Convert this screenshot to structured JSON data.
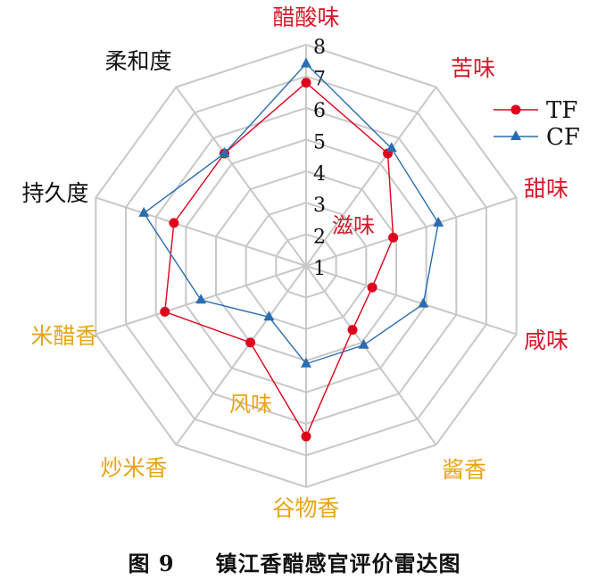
{
  "chart_data": {
    "type": "radar",
    "title": "图 9　镇江香醋感官评价雷达图",
    "figure_number": "图 9",
    "caption": "镇江香醋感官评价雷达图",
    "axes": [
      {
        "label": "醋酸味",
        "color": "#d7182a"
      },
      {
        "label": "苦味",
        "color": "#d7182a"
      },
      {
        "label": "甜味",
        "color": "#d7182a"
      },
      {
        "label": "咸味",
        "color": "#d7182a"
      },
      {
        "label": "酱香",
        "color": "#e8a317"
      },
      {
        "label": "谷物香",
        "color": "#e8a317"
      },
      {
        "label": "炒米香",
        "color": "#e8a317"
      },
      {
        "label": "米醋香",
        "color": "#e8a317"
      },
      {
        "label": "持久度",
        "color": "#111111"
      },
      {
        "label": "柔和度",
        "color": "#111111"
      }
    ],
    "categories": [
      "醋酸味",
      "苦味",
      "甜味",
      "咸味",
      "酱香",
      "谷物香",
      "炒米香",
      "米醋香",
      "持久度",
      "柔和度"
    ],
    "group_labels": [
      {
        "label": "滋味",
        "color": "#d7182a"
      },
      {
        "label": "风味",
        "color": "#e8a317"
      }
    ],
    "tick_labels": [
      "1",
      "2",
      "3",
      "4",
      "5",
      "6",
      "7",
      "8"
    ],
    "rlim": [
      1,
      8
    ],
    "series": [
      {
        "name": "TF",
        "color": "#e0001b",
        "marker": "circle",
        "values": [
          6.8,
          5.4,
          3.9,
          3.2,
          3.5,
          6.4,
          4.0,
          5.7,
          5.4,
          5.4
        ]
      },
      {
        "name": "CF",
        "color": "#2a6db0",
        "marker": "triangle",
        "values": [
          7.4,
          5.6,
          5.4,
          4.9,
          4.1,
          4.1,
          3.0,
          4.5,
          6.4,
          5.4
        ]
      }
    ],
    "legend_position": "upper right",
    "grid": true
  }
}
